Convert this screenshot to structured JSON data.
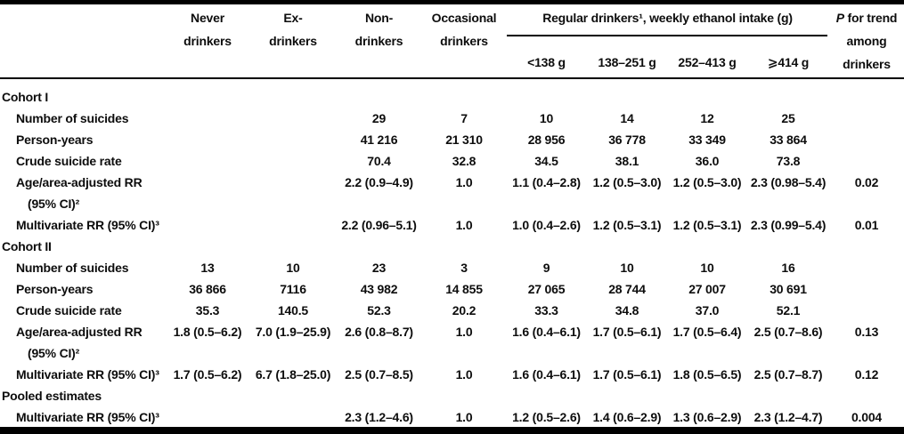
{
  "header": {
    "never": [
      "Never",
      "drinkers"
    ],
    "ex": [
      "Ex-",
      "drinkers"
    ],
    "non": [
      "Non-",
      "drinkers"
    ],
    "occasional": [
      "Occasional",
      "drinkers"
    ],
    "regular_group_label": "Regular drinkers¹, weekly ethanol intake (g)",
    "ethanol_ranges": [
      "<138 g",
      "138–251 g",
      "252–413 g",
      "⩾414 g"
    ],
    "p_col": {
      "italic": "P",
      "rest": " for trend",
      "line2": "among",
      "line3": "drinkers"
    }
  },
  "column_keys": [
    "never-drinkers",
    "ex-drinkers",
    "non-drinkers",
    "occasional-drinkers",
    "lt-138g",
    "138-251g",
    "252-413g",
    "ge-414g",
    "p-for-trend"
  ],
  "rows": [
    {
      "type": "section",
      "label": "Cohort I"
    },
    {
      "type": "data",
      "label": "Number of suicides",
      "cells": [
        "",
        "",
        "29",
        "7",
        "10",
        "14",
        "12",
        "25",
        ""
      ]
    },
    {
      "type": "data",
      "label": "Person-years",
      "cells": [
        "",
        "",
        "41 216",
        "21 310",
        "28 956",
        "36 778",
        "33 349",
        "33 864",
        ""
      ]
    },
    {
      "type": "data",
      "label": "Crude suicide rate",
      "cells": [
        "",
        "",
        "70.4",
        "32.8",
        "34.5",
        "38.1",
        "36.0",
        "73.8",
        ""
      ]
    },
    {
      "type": "data",
      "label": "Age/area-adjusted RR",
      "label2": "(95% CI)²",
      "cells": [
        "",
        "",
        "2.2 (0.9–4.9)",
        "1.0",
        "1.1 (0.4–2.8)",
        "1.2 (0.5–3.0)",
        "1.2 (0.5–3.0)",
        "2.3 (0.98–5.4)",
        "0.02"
      ]
    },
    {
      "type": "data",
      "label": "Multivariate RR (95% CI)³",
      "cells": [
        "",
        "",
        "2.2 (0.96–5.1)",
        "1.0",
        "1.0 (0.4–2.6)",
        "1.2 (0.5–3.1)",
        "1.2 (0.5–3.1)",
        "2.3 (0.99–5.4)",
        "0.01"
      ]
    },
    {
      "type": "section",
      "label": "Cohort II"
    },
    {
      "type": "data",
      "label": "Number of suicides",
      "cells": [
        "13",
        "10",
        "23",
        "3",
        "9",
        "10",
        "10",
        "16",
        ""
      ]
    },
    {
      "type": "data",
      "label": "Person-years",
      "cells": [
        "36 866",
        "7116",
        "43 982",
        "14 855",
        "27 065",
        "28 744",
        "27 007",
        "30 691",
        ""
      ]
    },
    {
      "type": "data",
      "label": "Crude suicide rate",
      "cells": [
        "35.3",
        "140.5",
        "52.3",
        "20.2",
        "33.3",
        "34.8",
        "37.0",
        "52.1",
        ""
      ]
    },
    {
      "type": "data",
      "label": "Age/area-adjusted RR",
      "label2": "(95% CI)²",
      "cells": [
        "1.8 (0.5–6.2)",
        "7.0 (1.9–25.9)",
        "2.6 (0.8–8.7)",
        "1.0",
        "1.6 (0.4–6.1)",
        "1.7 (0.5–6.1)",
        "1.7 (0.5–6.4)",
        "2.5 (0.7–8.6)",
        "0.13"
      ]
    },
    {
      "type": "data",
      "label": "Multivariate RR (95% CI)³",
      "cells": [
        "1.7 (0.5–6.2)",
        "6.7 (1.8–25.0)",
        "2.5 (0.7–8.5)",
        "1.0",
        "1.6 (0.4–6.1)",
        "1.7 (0.5–6.1)",
        "1.8 (0.5–6.5)",
        "2.5 (0.7–8.7)",
        "0.12"
      ]
    },
    {
      "type": "section",
      "label": "Pooled estimates"
    },
    {
      "type": "data",
      "label": "Multivariate RR (95% CI)³",
      "cells": [
        "",
        "",
        "2.3 (1.2–4.6)",
        "1.0",
        "1.2 (0.5–2.6)",
        "1.4 (0.6–2.9)",
        "1.3 (0.6–2.9)",
        "2.3 (1.2–4.7)",
        "0.004"
      ]
    }
  ],
  "colors": {
    "text": "#0d0d0d",
    "rule": "#000000",
    "background": "#ffffff"
  }
}
